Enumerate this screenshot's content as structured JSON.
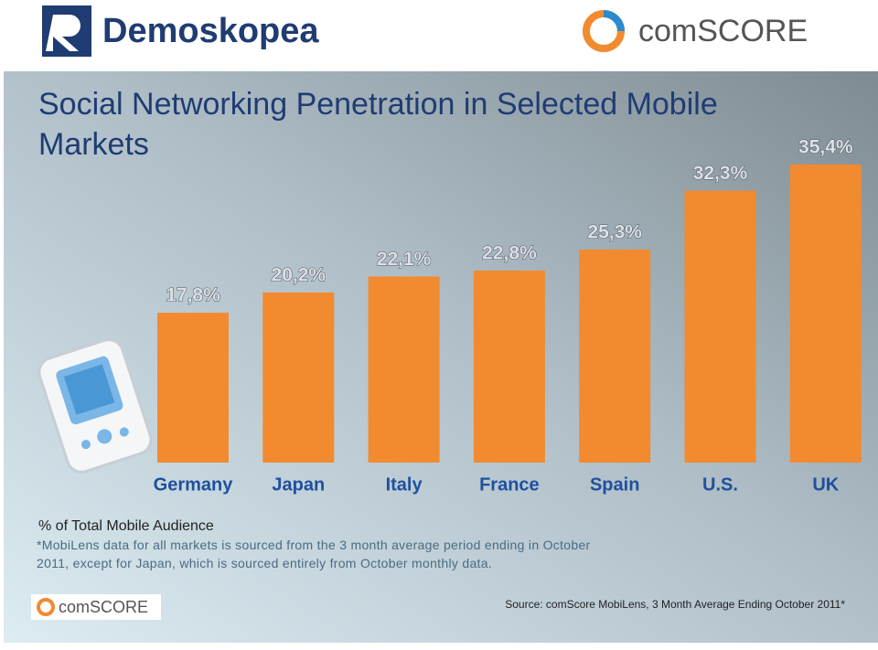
{
  "header": {
    "left_logo": "Demoskopea",
    "right_logo": "comSCORE"
  },
  "chart_data": {
    "type": "bar",
    "title": "Social Networking Penetration in Selected Mobile Markets",
    "categories": [
      "Germany",
      "Japan",
      "Italy",
      "France",
      "Spain",
      "U.S.",
      "UK"
    ],
    "values": [
      17.8,
      20.2,
      22.1,
      22.8,
      25.3,
      32.3,
      35.4
    ],
    "value_labels": [
      "17,8%",
      "20,2%",
      "22,1%",
      "22,8%",
      "25,3%",
      "32,3%",
      "35,4%"
    ],
    "color": "#f28a30",
    "y_label": "% of Total Mobile Audience",
    "note": "*MobiLens data for all markets is sourced from the 3 month average period ending in October 2011, except for Japan, which is sourced entirely from October monthly data."
  },
  "footer": {
    "logo": "comSCORE",
    "source": "Source: comScore MobiLens, 3 Month Average Ending October 2011*"
  }
}
